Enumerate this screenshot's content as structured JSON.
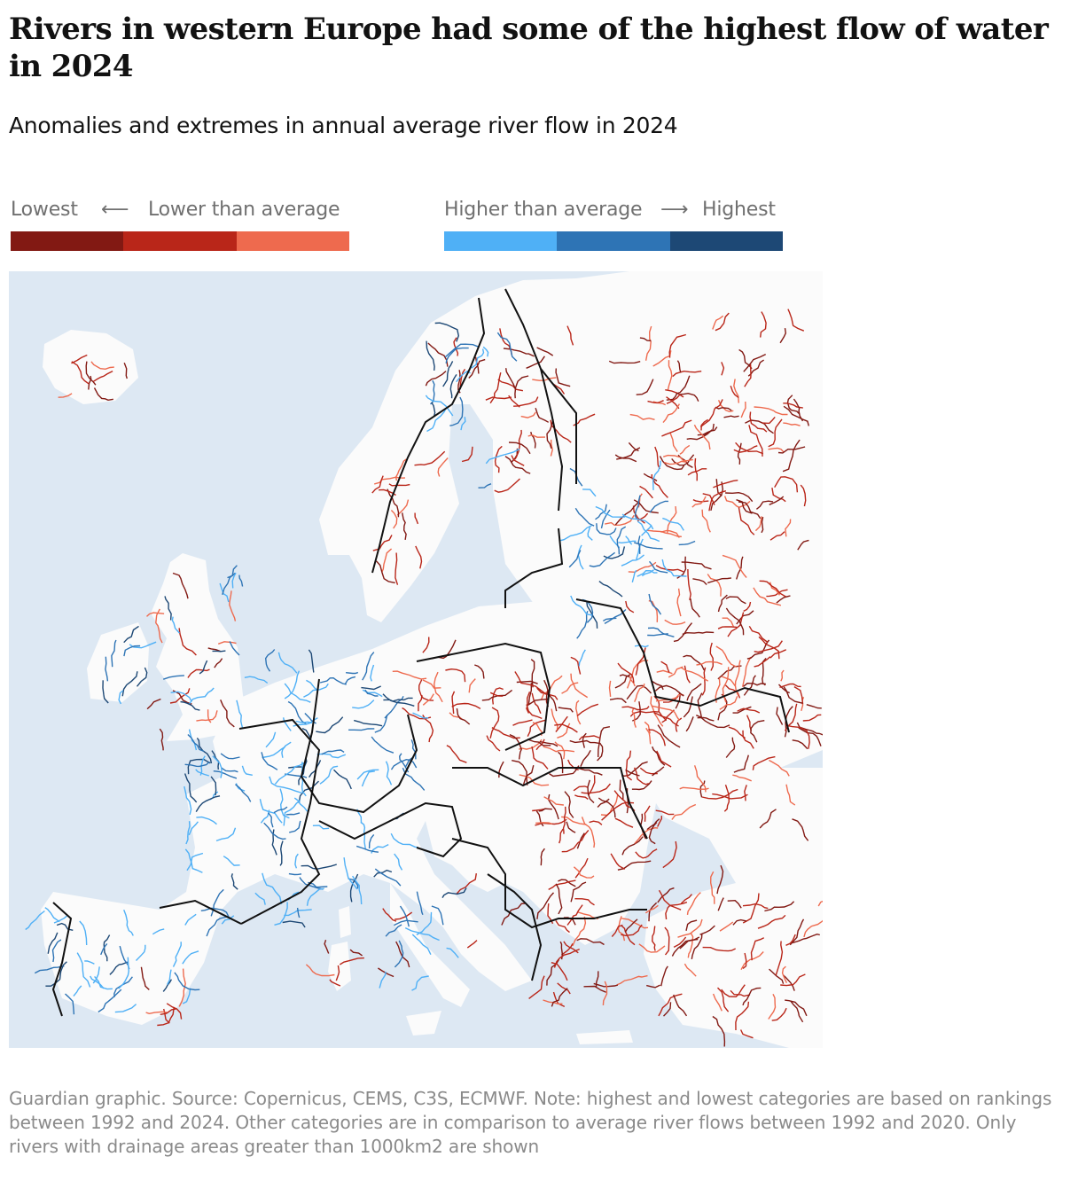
{
  "title": "Rivers in western Europe had some of the highest flow of water in 2024",
  "subtitle": "Anomalies and extremes in annual average river flow in 2024",
  "legend": {
    "low_extreme_label": "Lowest",
    "low_arrow": "⟵",
    "low_label": "Lower than average",
    "high_label": "Higher than average",
    "high_arrow": "⟶",
    "high_extreme_label": "Highest",
    "low_colors": [
      "#821913",
      "#b92619",
      "#ee6a4e"
    ],
    "high_colors": [
      "#4fb0f6",
      "#2e74b5",
      "#1d4875"
    ]
  },
  "map": {
    "type": "choropleth-river-network",
    "region": "Europe",
    "colors": {
      "sea": "#dde8f3",
      "land": "#fbfbfb",
      "border": "#111111"
    }
  },
  "footnote": "Guardian graphic. Source: Copernicus, CEMS, C3S, ECMWF. Note: highest and lowest categories are based on rankings between 1992 and 2024. Other categories are in comparison to average river flows between 1992 and 2020. Only rivers with drainage areas greater than 1000km2 are shown"
}
